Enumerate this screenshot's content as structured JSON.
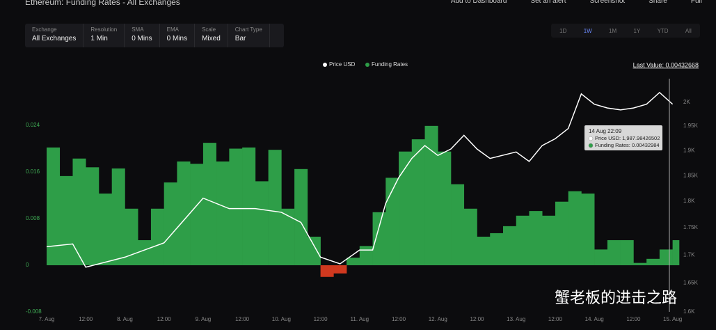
{
  "header": {
    "title": "Ethereum: Funding Rates - All Exchanges",
    "actions": [
      "Add to Dashboard",
      "Set an alert",
      "Screenshot",
      "Share",
      "Full"
    ]
  },
  "controls": [
    {
      "label": "Exchange",
      "value": "All Exchanges"
    },
    {
      "label": "Resolution",
      "value": "1 Min"
    },
    {
      "label": "SMA",
      "value": "0 Mins"
    },
    {
      "label": "EMA",
      "value": "0 Mins"
    },
    {
      "label": "Scale",
      "value": "Mixed"
    },
    {
      "label": "Chart Type",
      "value": "Bar"
    }
  ],
  "ranges": [
    "1D",
    "1W",
    "1M",
    "1Y",
    "YTD",
    "All"
  ],
  "active_range": "1W",
  "watermark": "蟹老板的进击之路",
  "chart_data": {
    "type": "bar",
    "last_value": "Last Value: 0.00432668",
    "tooltip": {
      "title": "14 Aug 22:09",
      "lines": [
        "Price USD: 1,987.98426502",
        "Funding Rates: 0.00432984"
      ]
    },
    "xlim": [
      0,
      194
    ],
    "xticks": [
      {
        "value": 0,
        "label": "7. Aug"
      },
      {
        "value": 12,
        "label": "12:00"
      },
      {
        "value": 24,
        "label": "8. Aug"
      },
      {
        "value": 36,
        "label": "12:00"
      },
      {
        "value": 48,
        "label": "9. Aug"
      },
      {
        "value": 60,
        "label": "12:00"
      },
      {
        "value": 72,
        "label": "10. Aug"
      },
      {
        "value": 84,
        "label": "12:00"
      },
      {
        "value": 96,
        "label": "11. Aug"
      },
      {
        "value": 108,
        "label": "12:00"
      },
      {
        "value": 120,
        "label": "12. Aug"
      },
      {
        "value": 132,
        "label": "12:00"
      },
      {
        "value": 144,
        "label": "13. Aug"
      },
      {
        "value": 156,
        "label": "12:00"
      },
      {
        "value": 168,
        "label": "14. Aug"
      },
      {
        "value": 180,
        "label": "12:00"
      },
      {
        "value": 192,
        "label": "15. Aug"
      }
    ],
    "ylim": [
      -0.008,
      0.032
    ],
    "yticks": [
      -0.008,
      0,
      0.008,
      0.016,
      0.024
    ],
    "y2lim": [
      1600,
      2051
    ],
    "y2_log": true,
    "y2ticks": [
      {
        "value": 1600,
        "label": "1.6K"
      },
      {
        "value": 1650,
        "label": "1.65K"
      },
      {
        "value": 1700,
        "label": "1.7K"
      },
      {
        "value": 1750,
        "label": "1.75K"
      },
      {
        "value": 1800,
        "label": "1.8K"
      },
      {
        "value": 1850,
        "label": "1.85K"
      },
      {
        "value": 1900,
        "label": "1.9K"
      },
      {
        "value": 1950,
        "label": "1.95K"
      },
      {
        "value": 2000,
        "label": "2K"
      }
    ],
    "series": [
      {
        "name": "Price USD",
        "color": "#ffffff",
        "axis": "y2",
        "type": "line",
        "x": [
          0,
          8,
          12,
          24,
          36,
          48,
          56,
          64,
          72,
          78,
          84,
          90,
          96,
          100,
          104,
          108,
          112,
          116,
          120,
          124,
          128,
          132,
          136,
          144,
          148,
          152,
          156,
          160,
          164,
          168,
          172,
          176,
          180,
          184,
          188,
          192
        ],
        "values": [
          1715,
          1720,
          1678,
          1696,
          1722,
          1806,
          1786,
          1786,
          1779,
          1760,
          1696,
          1684,
          1709,
          1709,
          1796,
          1846,
          1884,
          1910,
          1890,
          1903,
          1931,
          1903,
          1884,
          1897,
          1878,
          1910,
          1924,
          1945,
          2018,
          1996,
          1988,
          1984,
          1988,
          1996,
          2021,
          1996
        ]
      },
      {
        "name": "Funding Rates",
        "color": "#2e9e48",
        "negative_color": "#d0391f",
        "type": "bar",
        "x": [
          0,
          4,
          8,
          12,
          16,
          20,
          24,
          28,
          32,
          36,
          40,
          44,
          48,
          52,
          56,
          60,
          64,
          68,
          72,
          76,
          80,
          84,
          88,
          92,
          96,
          100,
          104,
          108,
          112,
          116,
          120,
          124,
          128,
          132,
          136,
          140,
          144,
          148,
          152,
          156,
          160,
          164,
          168,
          172,
          176,
          180,
          184,
          188,
          192
        ],
        "values": [
          0.0202,
          0.0153,
          0.0183,
          0.0168,
          0.0123,
          0.0166,
          0.0097,
          0.0043,
          0.0097,
          0.0142,
          0.0178,
          0.0174,
          0.021,
          0.0178,
          0.02,
          0.0202,
          0.0144,
          0.0198,
          0.0097,
          0.0165,
          0.0049,
          -0.002,
          -0.0014,
          0.0013,
          0.0033,
          0.0091,
          0.015,
          0.0195,
          0.0216,
          0.0239,
          0.0195,
          0.0139,
          0.0097,
          0.0049,
          0.0055,
          0.0067,
          0.0085,
          0.0093,
          0.0085,
          0.0109,
          0.0127,
          0.0123,
          0.0027,
          0.0043,
          0.0043,
          0.0004,
          0.0011,
          0.0027,
          0.0043
        ]
      }
    ]
  }
}
